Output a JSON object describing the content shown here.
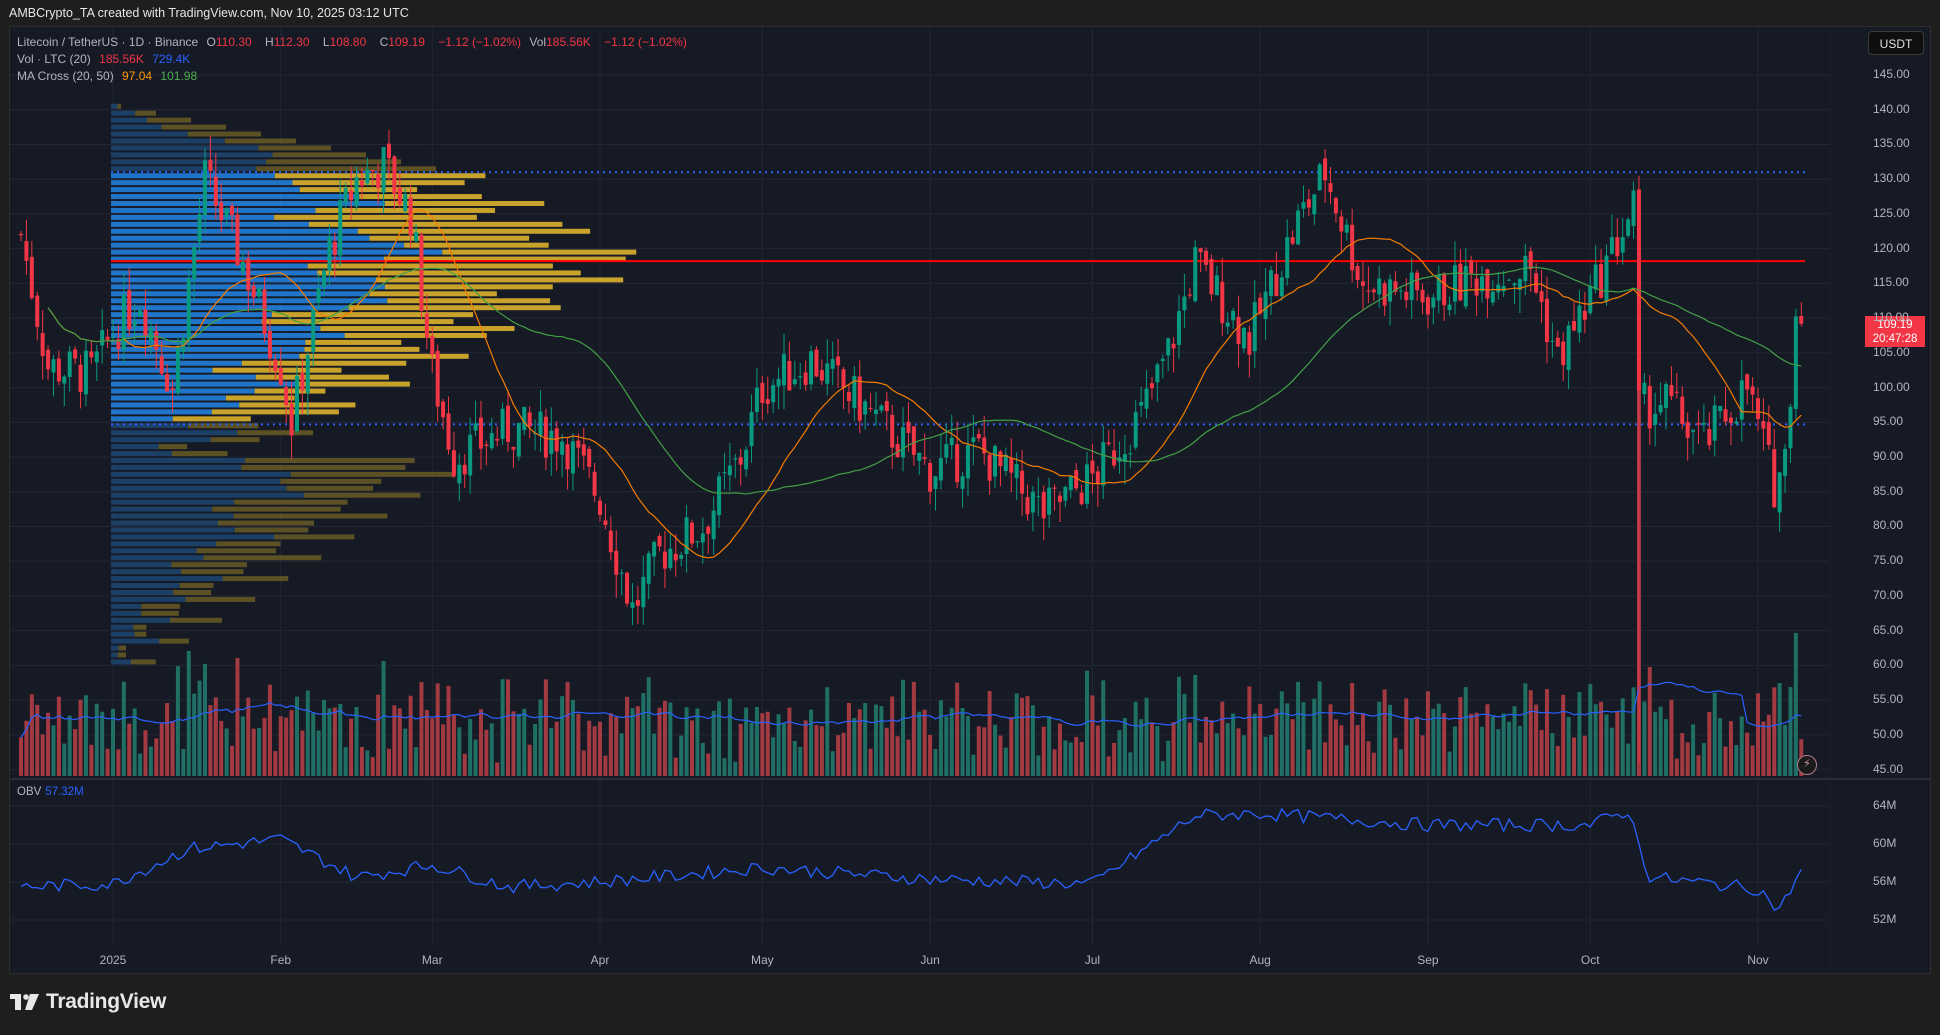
{
  "header": {
    "attribution": "AMBCrypto_TA created with TradingView.com, Nov 10, 2025 03:12 UTC"
  },
  "legend": {
    "symbol": "Litecoin / TetherUS · 1D · Binance",
    "open_label": "O",
    "open": "110.30",
    "high_label": "H",
    "high": "112.30",
    "low_label": "L",
    "low": "108.80",
    "close_label": "C",
    "close": "109.19",
    "change": "−1.12 (−1.02%)",
    "vol_label": "Vol",
    "vol": "185.56K",
    "vol_change": "−1.12 (−1.02%)",
    "volume_indicator": "Vol · LTC (20)",
    "volume_value": "185.56K",
    "volume_ma": "729.4K",
    "ma_cross": "MA Cross (20, 50)",
    "ma_fast": "97.04",
    "ma_slow": "101.98"
  },
  "toolbar": {
    "currency_button": "USDT"
  },
  "price_tag": {
    "price": "109.19",
    "countdown": "20:47:28"
  },
  "obv": {
    "label": "OBV",
    "value": "57.32M"
  },
  "branding": {
    "logo_text": "TradingView"
  },
  "colors": {
    "up": "#089981",
    "down": "#f23645",
    "up_vol": "#1f6f64",
    "down_vol": "#a33a42",
    "ma_fast": "#f57c00",
    "ma_slow": "#43a047",
    "obv": "#2962ff",
    "vol_ma": "#2962ff",
    "profile_up": "#2175c8",
    "profile_down": "#c8a22a",
    "profile_up_dim": "#1c3f66",
    "profile_down_dim": "#5c5025",
    "poc": "#ff0000",
    "value_area": "#2962ff"
  },
  "chart_data": {
    "type": "candlestick",
    "title": "Litecoin / TetherUS · 1D · Binance",
    "xlabel": "",
    "ylabel": "USDT",
    "x_tick_labels": [
      "2025",
      "Feb",
      "Mar",
      "Apr",
      "May",
      "Jun",
      "Jul",
      "Aug",
      "Sep",
      "Oct",
      "Nov"
    ],
    "y_tick_labels": [
      "145.00",
      "140.00",
      "135.00",
      "130.00",
      "125.00",
      "120.00",
      "115.00",
      "110.00",
      "105.00",
      "100.00",
      "95.00",
      "90.00",
      "85.00",
      "80.00",
      "75.00",
      "70.00",
      "65.00",
      "60.00",
      "55.00",
      "50.00",
      "45.00"
    ],
    "ylim": [
      45,
      145
    ],
    "last": {
      "open": 110.3,
      "high": 112.3,
      "low": 108.8,
      "close": 109.19,
      "volume": "185.56K"
    },
    "levels": {
      "poc": 118.2,
      "value_area_high": 131.0,
      "value_area_low": 94.7
    },
    "ma_cross": {
      "fast_period": 20,
      "slow_period": 50,
      "fast_last": 97.04,
      "slow_last": 101.98
    },
    "volume_ma_last": "729.4K",
    "obv_panel": {
      "y_tick_labels": [
        "64M",
        "60M",
        "56M",
        "52M"
      ],
      "last": "57.32M",
      "series_monthly_approx": [
        {
          "x": "Dec 15",
          "v": 55.5
        },
        {
          "x": "2025",
          "v": 55.8
        },
        {
          "x": "Jan 15",
          "v": 59.5
        },
        {
          "x": "Feb",
          "v": 60.5
        },
        {
          "x": "Feb 15",
          "v": 56.5
        },
        {
          "x": "Mar",
          "v": 57.8
        },
        {
          "x": "Mar 15",
          "v": 55.5
        },
        {
          "x": "Apr",
          "v": 56.0
        },
        {
          "x": "May",
          "v": 57.5
        },
        {
          "x": "Jun",
          "v": 56.3
        },
        {
          "x": "Jul",
          "v": 55.8
        },
        {
          "x": "Jul 20",
          "v": 63.0
        },
        {
          "x": "Aug",
          "v": 63.2
        },
        {
          "x": "Sep",
          "v": 62.0
        },
        {
          "x": "Oct",
          "v": 62.0
        },
        {
          "x": "Oct 8",
          "v": 63.5
        },
        {
          "x": "Oct 12",
          "v": 56.5
        },
        {
          "x": "Nov",
          "v": 55.3
        },
        {
          "x": "Nov 5",
          "v": 53.0
        },
        {
          "x": "Nov 9",
          "v": 57.32
        }
      ]
    },
    "price_path_approx": [
      {
        "x": "Dec 15",
        "close": 122
      },
      {
        "x": "Dec 20",
        "close": 103
      },
      {
        "x": "Dec 28",
        "close": 102
      },
      {
        "x": "2025",
        "close": 108
      },
      {
        "x": "Jan 6",
        "close": 113
      },
      {
        "x": "Jan 12",
        "close": 100
      },
      {
        "x": "Jan 18",
        "close": 130
      },
      {
        "x": "Jan 25",
        "close": 118
      },
      {
        "x": "Feb",
        "close": 103
      },
      {
        "x": "Feb 3",
        "close": 95
      },
      {
        "x": "Feb 10",
        "close": 120
      },
      {
        "x": "Feb 15",
        "close": 130
      },
      {
        "x": "Feb 20",
        "close": 132
      },
      {
        "x": "Feb 25",
        "close": 125
      },
      {
        "x": "Mar",
        "close": 102
      },
      {
        "x": "Mar 5",
        "close": 90
      },
      {
        "x": "Mar 15",
        "close": 94
      },
      {
        "x": "Mar 25",
        "close": 93
      },
      {
        "x": "Apr",
        "close": 84
      },
      {
        "x": "Apr 7",
        "close": 68
      },
      {
        "x": "Apr 12",
        "close": 76
      },
      {
        "x": "Apr 20",
        "close": 80
      },
      {
        "x": "Apr 27",
        "close": 90
      },
      {
        "x": "May",
        "close": 100
      },
      {
        "x": "May 10",
        "close": 104
      },
      {
        "x": "May 20",
        "close": 97
      },
      {
        "x": "Jun",
        "close": 88
      },
      {
        "x": "Jun 10",
        "close": 91
      },
      {
        "x": "Jun 22",
        "close": 82
      },
      {
        "x": "Jul",
        "close": 87
      },
      {
        "x": "Jul 10",
        "close": 96
      },
      {
        "x": "Jul 15",
        "close": 105
      },
      {
        "x": "Jul 20",
        "close": 118
      },
      {
        "x": "Jul 30",
        "close": 107
      },
      {
        "x": "Aug 8",
        "close": 124
      },
      {
        "x": "Aug 13",
        "close": 131
      },
      {
        "x": "Aug 20",
        "close": 115
      },
      {
        "x": "Sep",
        "close": 113
      },
      {
        "x": "Sep 10",
        "close": 116
      },
      {
        "x": "Sep 20",
        "close": 117
      },
      {
        "x": "Sep 25",
        "close": 104
      },
      {
        "x": "Oct",
        "close": 113
      },
      {
        "x": "Oct 6",
        "close": 121
      },
      {
        "x": "Oct 9",
        "close": 126
      },
      {
        "x": "Oct 10",
        "close": 97,
        "low": 46
      },
      {
        "x": "Oct 15",
        "close": 98
      },
      {
        "x": "Oct 22",
        "close": 92
      },
      {
        "x": "Oct 30",
        "close": 100
      },
      {
        "x": "Nov 4",
        "close": 86
      },
      {
        "x": "Nov 6",
        "close": 90
      },
      {
        "x": "Nov 8",
        "close": 111
      },
      {
        "x": "Nov 9",
        "close": 109.19
      }
    ]
  }
}
